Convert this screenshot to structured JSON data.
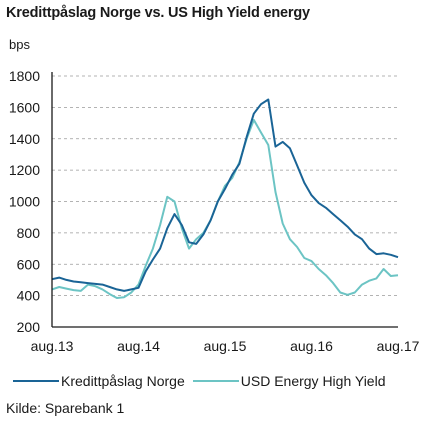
{
  "title": "Kredittpåslag Norge vs. US High Yield energy",
  "unit_label": "bps",
  "source": "Kilde: Sparebank 1",
  "colors": {
    "norge": "#1a6496",
    "usd": "#6cc4c4",
    "grid": "#9a9a9a",
    "axis": "#1a1a1a"
  },
  "chart_data": {
    "type": "line",
    "title": "Kredittpåslag Norge vs. US High Yield energy",
    "ylabel": "bps",
    "ylim": [
      200,
      1800
    ],
    "yticks": [
      200,
      400,
      600,
      800,
      1000,
      1200,
      1400,
      1600,
      1800
    ],
    "xlim": [
      "2013-08",
      "2017-08"
    ],
    "xticks": [
      {
        "date": "2013-08",
        "label": "aug.13"
      },
      {
        "date": "2014-08",
        "label": "aug.14"
      },
      {
        "date": "2015-08",
        "label": "aug.15"
      },
      {
        "date": "2016-08",
        "label": "aug.16"
      },
      {
        "date": "2017-08",
        "label": "aug.17"
      }
    ],
    "grid": "horizontal dashed",
    "legend": "bottom",
    "series": [
      {
        "name": "Kredittpåslag Norge",
        "color": "#1a6496",
        "points": [
          [
            "2013-08",
            505
          ],
          [
            "2013-09",
            515
          ],
          [
            "2013-10",
            500
          ],
          [
            "2013-11",
            490
          ],
          [
            "2013-12",
            485
          ],
          [
            "2014-01",
            480
          ],
          [
            "2014-02",
            475
          ],
          [
            "2014-03",
            470
          ],
          [
            "2014-04",
            455
          ],
          [
            "2014-05",
            440
          ],
          [
            "2014-06",
            430
          ],
          [
            "2014-07",
            440
          ],
          [
            "2014-08",
            450
          ],
          [
            "2014-09",
            555
          ],
          [
            "2014-10",
            630
          ],
          [
            "2014-11",
            700
          ],
          [
            "2014-12",
            830
          ],
          [
            "2015-01",
            920
          ],
          [
            "2015-02",
            850
          ],
          [
            "2015-03",
            740
          ],
          [
            "2015-04",
            730
          ],
          [
            "2015-05",
            790
          ],
          [
            "2015-06",
            880
          ],
          [
            "2015-07",
            1000
          ],
          [
            "2015-08",
            1080
          ],
          [
            "2015-09",
            1170
          ],
          [
            "2015-10",
            1240
          ],
          [
            "2015-11",
            1410
          ],
          [
            "2015-12",
            1560
          ],
          [
            "2016-01",
            1620
          ],
          [
            "2016-02",
            1650
          ],
          [
            "2016-03",
            1350
          ],
          [
            "2016-04",
            1380
          ],
          [
            "2016-05",
            1340
          ],
          [
            "2016-06",
            1230
          ],
          [
            "2016-07",
            1120
          ],
          [
            "2016-08",
            1040
          ],
          [
            "2016-09",
            990
          ],
          [
            "2016-10",
            960
          ],
          [
            "2016-11",
            920
          ],
          [
            "2016-12",
            880
          ],
          [
            "2017-01",
            840
          ],
          [
            "2017-02",
            790
          ],
          [
            "2017-03",
            760
          ],
          [
            "2017-04",
            700
          ],
          [
            "2017-05",
            665
          ],
          [
            "2017-06",
            670
          ],
          [
            "2017-07",
            660
          ],
          [
            "2017-08",
            645
          ]
        ]
      },
      {
        "name": "USD Energy High Yield",
        "color": "#6cc4c4",
        "points": [
          [
            "2013-08",
            440
          ],
          [
            "2013-09",
            455
          ],
          [
            "2013-10",
            445
          ],
          [
            "2013-11",
            435
          ],
          [
            "2013-12",
            430
          ],
          [
            "2014-01",
            470
          ],
          [
            "2014-02",
            460
          ],
          [
            "2014-03",
            440
          ],
          [
            "2014-04",
            410
          ],
          [
            "2014-05",
            385
          ],
          [
            "2014-06",
            390
          ],
          [
            "2014-07",
            420
          ],
          [
            "2014-08",
            470
          ],
          [
            "2014-09",
            590
          ],
          [
            "2014-10",
            700
          ],
          [
            "2014-11",
            850
          ],
          [
            "2014-12",
            1030
          ],
          [
            "2015-01",
            1000
          ],
          [
            "2015-02",
            830
          ],
          [
            "2015-03",
            700
          ],
          [
            "2015-04",
            760
          ],
          [
            "2015-05",
            800
          ],
          [
            "2015-06",
            880
          ],
          [
            "2015-07",
            1000
          ],
          [
            "2015-08",
            1100
          ],
          [
            "2015-09",
            1150
          ],
          [
            "2015-10",
            1250
          ],
          [
            "2015-11",
            1400
          ],
          [
            "2015-12",
            1520
          ],
          [
            "2016-01",
            1440
          ],
          [
            "2016-02",
            1360
          ],
          [
            "2016-03",
            1060
          ],
          [
            "2016-04",
            860
          ],
          [
            "2016-05",
            760
          ],
          [
            "2016-06",
            710
          ],
          [
            "2016-07",
            640
          ],
          [
            "2016-08",
            620
          ],
          [
            "2016-09",
            570
          ],
          [
            "2016-10",
            530
          ],
          [
            "2016-11",
            480
          ],
          [
            "2016-12",
            420
          ],
          [
            "2017-01",
            405
          ],
          [
            "2017-02",
            420
          ],
          [
            "2017-03",
            470
          ],
          [
            "2017-04",
            495
          ],
          [
            "2017-05",
            510
          ],
          [
            "2017-06",
            570
          ],
          [
            "2017-07",
            525
          ],
          [
            "2017-08",
            530
          ]
        ]
      }
    ]
  }
}
